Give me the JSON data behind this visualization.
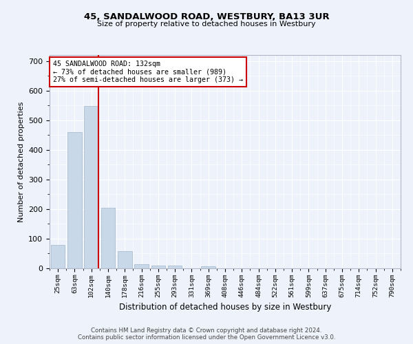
{
  "title": "45, SANDALWOOD ROAD, WESTBURY, BA13 3UR",
  "subtitle": "Size of property relative to detached houses in Westbury",
  "xlabel": "Distribution of detached houses by size in Westbury",
  "ylabel": "Number of detached properties",
  "categories": [
    "25sqm",
    "63sqm",
    "102sqm",
    "140sqm",
    "178sqm",
    "216sqm",
    "255sqm",
    "293sqm",
    "331sqm",
    "369sqm",
    "408sqm",
    "446sqm",
    "484sqm",
    "522sqm",
    "561sqm",
    "599sqm",
    "637sqm",
    "675sqm",
    "714sqm",
    "752sqm",
    "790sqm"
  ],
  "bar_heights": [
    78,
    460,
    548,
    204,
    57,
    15,
    10,
    10,
    0,
    8,
    0,
    0,
    0,
    0,
    0,
    0,
    0,
    0,
    0,
    0,
    0
  ],
  "bar_color": "#c8d8e8",
  "bar_edge_color": "#a0b8cc",
  "annotation_text": "45 SANDALWOOD ROAD: 132sqm\n← 73% of detached houses are smaller (989)\n27% of semi-detached houses are larger (373) →",
  "annotation_box_color": "white",
  "annotation_box_edge_color": "#cc0000",
  "red_line_color": "#cc0000",
  "background_color": "#eef2fa",
  "grid_color": "#ffffff",
  "ylim": [
    0,
    720
  ],
  "yticks": [
    0,
    100,
    200,
    300,
    400,
    500,
    600,
    700
  ],
  "footer_line1": "Contains HM Land Registry data © Crown copyright and database right 2024.",
  "footer_line2": "Contains public sector information licensed under the Open Government Licence v3.0."
}
